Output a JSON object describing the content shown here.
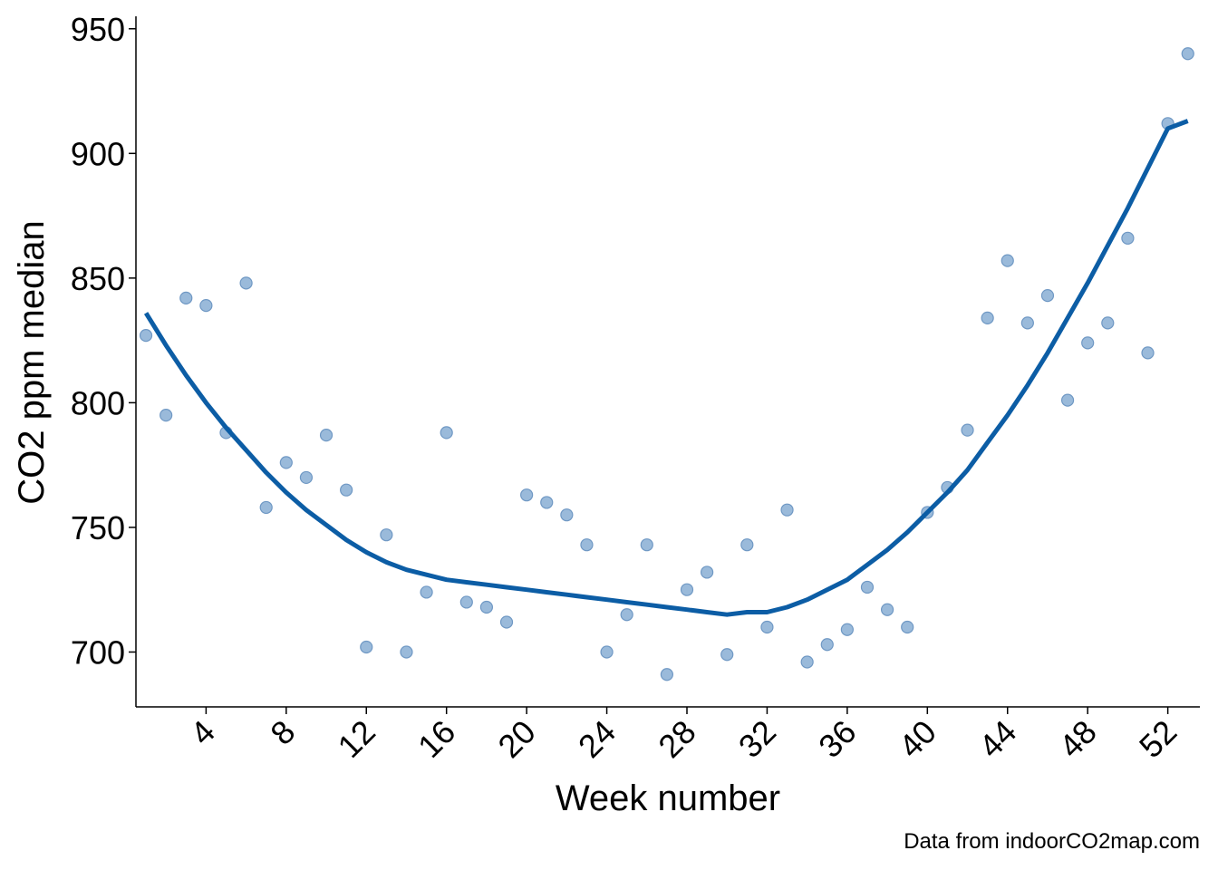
{
  "chart_data": {
    "type": "scatter",
    "xlabel": "Week number",
    "ylabel": "CO2 ppm median",
    "caption": "Data from indoorCO2map.com",
    "xlim": [
      0.5,
      53.6
    ],
    "ylim": [
      678,
      955
    ],
    "x_ticks": [
      4,
      8,
      12,
      16,
      20,
      24,
      28,
      32,
      36,
      40,
      44,
      48,
      52
    ],
    "y_ticks": [
      700,
      750,
      800,
      850,
      900,
      950
    ],
    "grid": false,
    "colors": {
      "points": "#8fb2d6",
      "point_stroke": "#6f98c4",
      "trend": "#0c5da5",
      "axis": "#000000"
    },
    "series": [
      {
        "kind": "points",
        "x": [
          1,
          2,
          3,
          4,
          5,
          6,
          7,
          8,
          9,
          10,
          11,
          12,
          13,
          14,
          15,
          16,
          17,
          18,
          19,
          20,
          21,
          22,
          23,
          24,
          25,
          26,
          27,
          28,
          29,
          30,
          31,
          32,
          33,
          34,
          35,
          36,
          37,
          38,
          39,
          40,
          41,
          42,
          43,
          44,
          45,
          46,
          47,
          48,
          49,
          50,
          51,
          52,
          53
        ],
        "y": [
          827,
          795,
          842,
          839,
          788,
          848,
          758,
          776,
          770,
          787,
          765,
          702,
          747,
          700,
          724,
          788,
          720,
          718,
          712,
          763,
          760,
          755,
          743,
          700,
          715,
          743,
          691,
          725,
          732,
          699,
          743,
          710,
          757,
          696,
          703,
          709,
          726,
          717,
          710,
          756,
          766,
          789,
          834,
          857,
          832,
          843,
          801,
          824,
          832,
          866,
          820,
          912,
          940
        ]
      },
      {
        "kind": "smooth",
        "x": [
          1,
          2,
          3,
          4,
          5,
          6,
          7,
          8,
          9,
          10,
          11,
          12,
          13,
          14,
          15,
          16,
          17,
          18,
          19,
          20,
          21,
          22,
          23,
          24,
          25,
          26,
          27,
          28,
          29,
          30,
          31,
          32,
          33,
          34,
          35,
          36,
          37,
          38,
          39,
          40,
          41,
          42,
          43,
          44,
          45,
          46,
          47,
          48,
          49,
          50,
          51,
          52,
          53
        ],
        "y": [
          836,
          823,
          811,
          800,
          790,
          781,
          772,
          764,
          757,
          751,
          745,
          740,
          736,
          733,
          731,
          729,
          728,
          727,
          726,
          725,
          724,
          723,
          722,
          721,
          720,
          719,
          718,
          717,
          716,
          715,
          716,
          716,
          718,
          721,
          725,
          729,
          735,
          741,
          748,
          756,
          764,
          773,
          784,
          795,
          807,
          820,
          834,
          848,
          863,
          878,
          894,
          910,
          913
        ]
      }
    ]
  }
}
